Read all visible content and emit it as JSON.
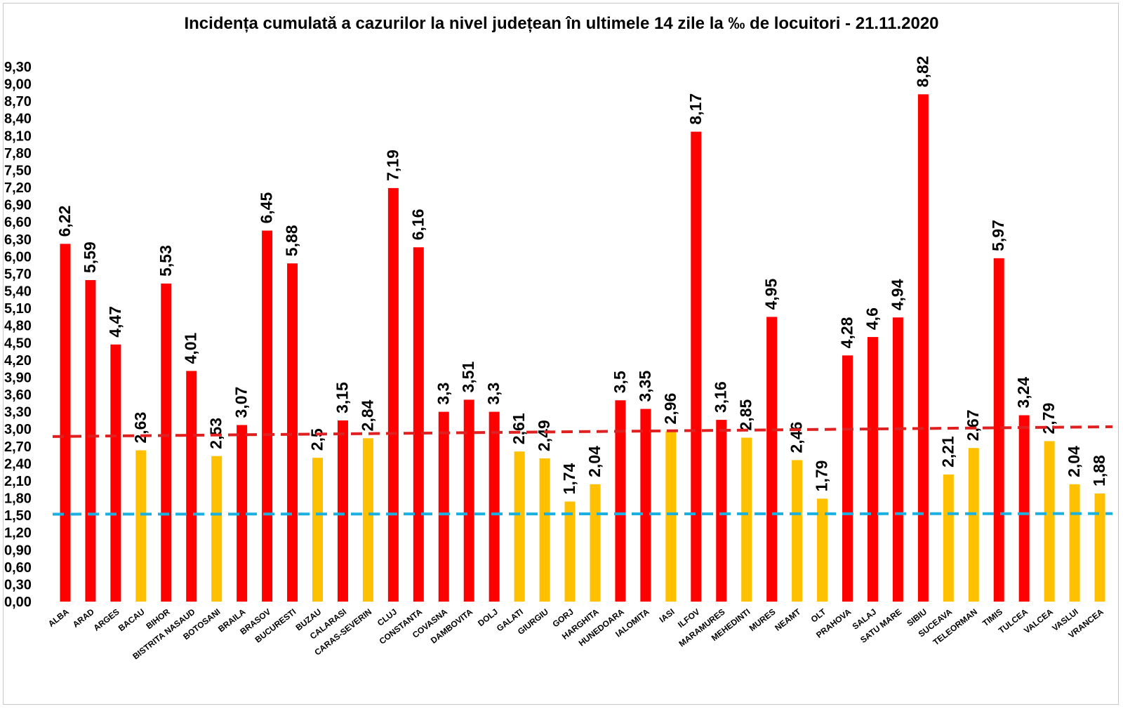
{
  "chart_data": {
    "type": "bar",
    "title": "Incidența cumulată a cazurilor la nivel județean în ultimele 14 zile la ‰ de locuitori - 21.11.2020",
    "xlabel": "",
    "ylabel": "",
    "ylim": [
      0,
      9.3
    ],
    "yticks": [
      "0,00",
      "0,30",
      "0,60",
      "0,90",
      "1,20",
      "1,50",
      "1,80",
      "2,10",
      "2,40",
      "2,70",
      "3,00",
      "3,30",
      "3,60",
      "3,90",
      "4,20",
      "4,50",
      "4,80",
      "5,10",
      "5,40",
      "5,70",
      "6,00",
      "6,30",
      "6,60",
      "6,90",
      "7,20",
      "7,50",
      "7,80",
      "8,10",
      "8,40",
      "8,70",
      "9,00",
      "9,30"
    ],
    "grid": false,
    "legend": "none",
    "colors": {
      "high": "#ff0000",
      "low": "#ffc000",
      "red_line": "#e02020",
      "blue_line": "#1ab0e0"
    },
    "categories": [
      "ALBA",
      "ARAD",
      "ARGES",
      "BACAU",
      "BIHOR",
      "BISTRITA NASAUD",
      "BOTOSANI",
      "BRAILA",
      "BRASOV",
      "BUCURESTI",
      "BUZAU",
      "CALARASI",
      "CARAS-SEVERIN",
      "CLUJ",
      "CONSTANTA",
      "COVASNA",
      "DAMBOVITA",
      "DOLJ",
      "GALATI",
      "GIURGIU",
      "GORJ",
      "HARGHITA",
      "HUNEDOARA",
      "IALOMITA",
      "IASI",
      "ILFOV",
      "MARAMURES",
      "MEHEDINTI",
      "MURES",
      "NEAMT",
      "OLT",
      "PRAHOVA",
      "SALAJ",
      "SATU MARE",
      "SIBIU",
      "SUCEAVA",
      "TELEORMAN",
      "TIMIS",
      "TULCEA",
      "VALCEA",
      "VASLUI",
      "VRANCEA"
    ],
    "values": [
      6.22,
      5.59,
      4.47,
      2.63,
      5.53,
      4.01,
      2.53,
      3.07,
      6.45,
      5.88,
      2.5,
      3.15,
      2.84,
      7.19,
      6.16,
      3.3,
      3.51,
      3.3,
      2.61,
      2.49,
      1.74,
      2.04,
      3.5,
      3.35,
      2.96,
      8.17,
      3.16,
      2.85,
      4.95,
      2.46,
      1.79,
      4.28,
      4.6,
      4.94,
      8.82,
      2.21,
      2.67,
      5.97,
      3.24,
      2.79,
      2.04,
      1.88
    ],
    "data_labels": [
      "6,22",
      "5,59",
      "4,47",
      "2,63",
      "5,53",
      "4,01",
      "2,53",
      "3,07",
      "6,45",
      "5,88",
      "2,5",
      "3,15",
      "2,84",
      "7,19",
      "6,16",
      "3,3",
      "3,51",
      "3,3",
      "2,61",
      "2,49",
      "1,74",
      "2,04",
      "3,5",
      "3,35",
      "2,96",
      "8,17",
      "3,16",
      "2,85",
      "4,95",
      "2,46",
      "1,79",
      "4,28",
      "4,6",
      "4,94",
      "8,82",
      "2,21",
      "2,67",
      "5,97",
      "3,24",
      "2,79",
      "2,04",
      "1,88"
    ],
    "bar_colors": [
      "high",
      "high",
      "high",
      "low",
      "high",
      "high",
      "low",
      "high",
      "high",
      "high",
      "low",
      "high",
      "low",
      "high",
      "high",
      "high",
      "high",
      "high",
      "low",
      "low",
      "low",
      "low",
      "high",
      "high",
      "low",
      "high",
      "high",
      "low",
      "high",
      "low",
      "low",
      "high",
      "high",
      "high",
      "high",
      "low",
      "low",
      "high",
      "high",
      "low",
      "low",
      "low"
    ],
    "reference_lines": [
      {
        "style": "dashed",
        "color": "red_line",
        "from": 2.87,
        "to": 3.04
      },
      {
        "style": "dashed",
        "color": "blue_line",
        "from": 1.52,
        "to": 1.53
      }
    ]
  }
}
